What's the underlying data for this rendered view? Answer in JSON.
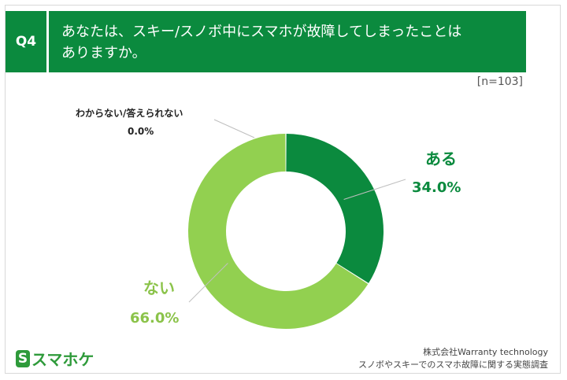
{
  "question": {
    "number": "Q4",
    "line1": "あなたは、スキー/スノボ中にスマホが故障してしまったことは",
    "line2": "ありますか。"
  },
  "sample": "[n=103]",
  "chart_data": {
    "type": "pie",
    "donut": true,
    "categories": [
      "ある",
      "ない",
      "わからない/答えられない"
    ],
    "values": [
      34.0,
      66.0,
      0.0
    ],
    "value_labels": [
      "34.0%",
      "66.0%",
      "0.0%"
    ],
    "unit": "%",
    "colors": [
      "#0b8a3e",
      "#92d050",
      "#cccccc"
    ]
  },
  "footer": {
    "logo_mark": "S",
    "logo_text": "スマホケ",
    "source_line1": "株式会社Warranty technology",
    "source_line2": "スノボやスキーでのスマホ故障に関する実態調査"
  }
}
